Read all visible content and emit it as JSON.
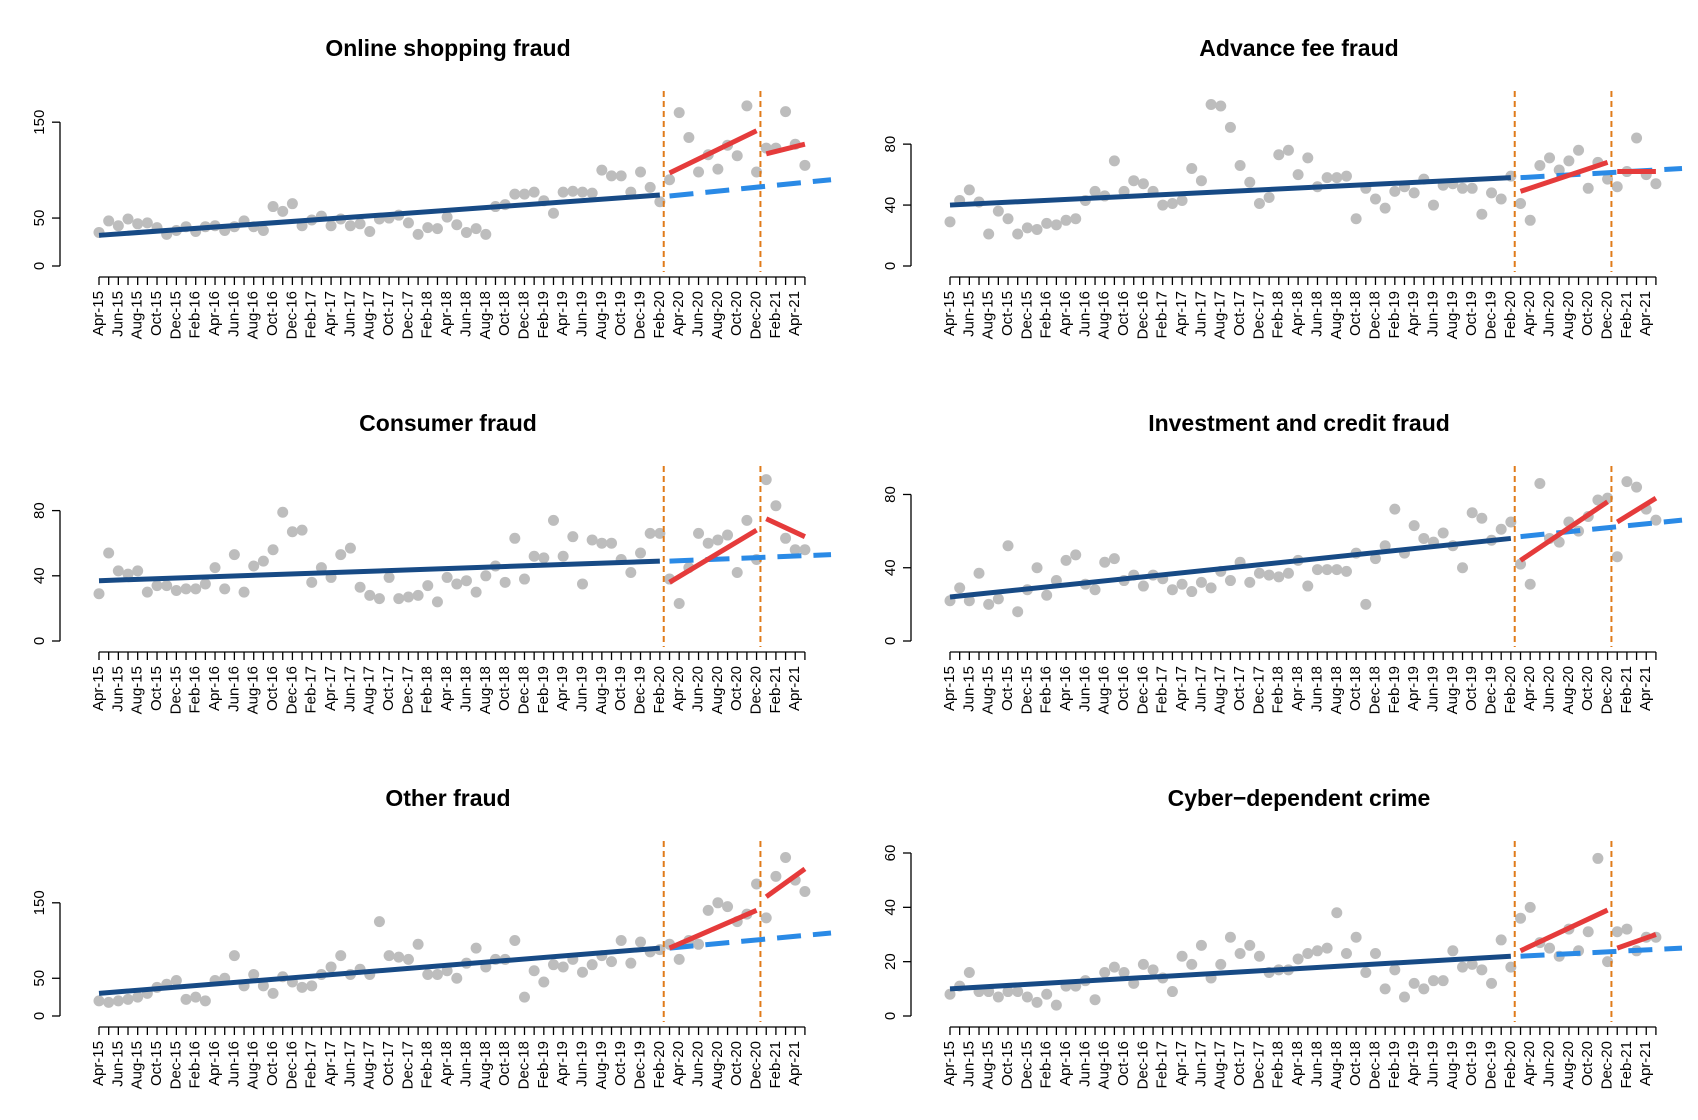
{
  "chart_data": [
    {
      "type": "scatter",
      "title": "Online shopping fraud",
      "point_color": "#bdbdbd",
      "categories": [
        "Apr-15",
        null,
        "Jun-15",
        null,
        "Aug-15",
        null,
        "Oct-15",
        null,
        "Dec-15",
        null,
        "Feb-16",
        null,
        "Apr-16",
        null,
        "Jun-16",
        null,
        "Aug-16",
        null,
        "Oct-16",
        null,
        "Dec-16",
        null,
        "Feb-17",
        null,
        "Apr-17",
        null,
        "Jun-17",
        null,
        "Aug-17",
        null,
        "Oct-17",
        null,
        "Dec-17",
        null,
        "Feb-18",
        null,
        "Apr-18",
        null,
        "Jun-18",
        null,
        "Aug-18",
        null,
        "Oct-18",
        null,
        "Dec-18",
        null,
        "Feb-19",
        null,
        "Apr-19",
        null,
        "Jun-19",
        null,
        "Aug-19",
        null,
        "Oct-19",
        null,
        "Dec-19",
        null,
        "Feb-20",
        null,
        "Apr-20",
        null,
        "Jun-20",
        null,
        "Aug-20",
        null,
        "Oct-20",
        null,
        "Dec-20",
        null,
        "Feb-21",
        null,
        "Apr-21",
        null
      ],
      "values": [
        35,
        47,
        42,
        49,
        44,
        45,
        40,
        33,
        37,
        41,
        36,
        41,
        42,
        37,
        41,
        47,
        41,
        37,
        62,
        57,
        65,
        42,
        48,
        52,
        42,
        49,
        42,
        44,
        36,
        49,
        50,
        53,
        45,
        33,
        40,
        39,
        51,
        43,
        35,
        39,
        33,
        62,
        64,
        75,
        75,
        77,
        68,
        55,
        77,
        78,
        77,
        76,
        100,
        94,
        94,
        77,
        98,
        82,
        67,
        90,
        160,
        134,
        98,
        116,
        101,
        126,
        115,
        167,
        98,
        123,
        123,
        161,
        127,
        105
      ],
      "lines": [
        {
          "color": "#174a85",
          "dashed": false,
          "x": [
            0,
            58
          ],
          "values": [
            32,
            74
          ]
        },
        {
          "color": "#2a8ae6",
          "dashed": true,
          "x": [
            59,
            75.7
          ],
          "values": [
            73,
            90
          ]
        },
        {
          "color": "#e53b3b",
          "dashed": false,
          "x": [
            59,
            68
          ],
          "values": [
            97,
            141
          ]
        },
        {
          "color": "#e53b3b",
          "dashed": false,
          "x": [
            69,
            73
          ],
          "values": [
            117,
            127
          ]
        }
      ],
      "vlines": [
        58.4,
        68.4
      ],
      "vline_color": "#e07b1a",
      "ylim": [
        0,
        170
      ],
      "yticks": [
        0,
        50,
        150
      ]
    },
    {
      "type": "scatter",
      "title": "Advance fee fraud",
      "point_color": "#bdbdbd",
      "categories": [
        "Apr-15",
        null,
        "Jun-15",
        null,
        "Aug-15",
        null,
        "Oct-15",
        null,
        "Dec-15",
        null,
        "Feb-16",
        null,
        "Apr-16",
        null,
        "Jun-16",
        null,
        "Aug-16",
        null,
        "Oct-16",
        null,
        "Dec-16",
        null,
        "Feb-17",
        null,
        "Apr-17",
        null,
        "Jun-17",
        null,
        "Aug-17",
        null,
        "Oct-17",
        null,
        "Dec-17",
        null,
        "Feb-18",
        null,
        "Apr-18",
        null,
        "Jun-18",
        null,
        "Aug-18",
        null,
        "Oct-18",
        null,
        "Dec-18",
        null,
        "Feb-19",
        null,
        "Apr-19",
        null,
        "Jun-19",
        null,
        "Aug-19",
        null,
        "Oct-19",
        null,
        "Dec-19",
        null,
        "Feb-20",
        null,
        "Apr-20",
        null,
        "Jun-20",
        null,
        "Aug-20",
        null,
        "Oct-20",
        null,
        "Dec-20",
        null,
        "Feb-21",
        null,
        "Apr-21",
        null
      ],
      "values": [
        29,
        43,
        50,
        42,
        21,
        36,
        31,
        21,
        25,
        24,
        28,
        27,
        30,
        31,
        43,
        49,
        46,
        69,
        49,
        56,
        54,
        49,
        40,
        41,
        43,
        64,
        56,
        106,
        105,
        91,
        66,
        55,
        41,
        45,
        73,
        76,
        60,
        71,
        52,
        58,
        58,
        59,
        31,
        51,
        44,
        38,
        49,
        52,
        48,
        57,
        40,
        53,
        54,
        51,
        51,
        34,
        48,
        44,
        59,
        41,
        30,
        66,
        71,
        63,
        69,
        76,
        51,
        68,
        57,
        52,
        62,
        84,
        60,
        54
      ],
      "lines": [
        {
          "color": "#174a85",
          "dashed": false,
          "x": [
            0,
            58
          ],
          "values": [
            40,
            58
          ]
        },
        {
          "color": "#2a8ae6",
          "dashed": true,
          "x": [
            59,
            75.7
          ],
          "values": [
            58,
            64
          ]
        },
        {
          "color": "#e53b3b",
          "dashed": false,
          "x": [
            59,
            68
          ],
          "values": [
            49,
            68
          ]
        },
        {
          "color": "#e53b3b",
          "dashed": false,
          "x": [
            69,
            73
          ],
          "values": [
            62,
            62
          ]
        }
      ],
      "vlines": [
        58.4,
        68.4
      ],
      "vline_color": "#e07b1a",
      "ylim": [
        0,
        107
      ],
      "yticks": [
        0,
        40,
        80
      ]
    },
    {
      "type": "scatter",
      "title": "Consumer fraud",
      "point_color": "#bdbdbd",
      "categories": [
        "Apr-15",
        null,
        "Jun-15",
        null,
        "Aug-15",
        null,
        "Oct-15",
        null,
        "Dec-15",
        null,
        "Feb-16",
        null,
        "Apr-16",
        null,
        "Jun-16",
        null,
        "Aug-16",
        null,
        "Oct-16",
        null,
        "Dec-16",
        null,
        "Feb-17",
        null,
        "Apr-17",
        null,
        "Jun-17",
        null,
        "Aug-17",
        null,
        "Oct-17",
        null,
        "Dec-17",
        null,
        "Feb-18",
        null,
        "Apr-18",
        null,
        "Jun-18",
        null,
        "Aug-18",
        null,
        "Oct-18",
        null,
        "Dec-18",
        null,
        "Feb-19",
        null,
        "Apr-19",
        null,
        "Jun-19",
        null,
        "Aug-19",
        null,
        "Oct-19",
        null,
        "Dec-19",
        null,
        "Feb-20",
        null,
        "Apr-20",
        null,
        "Jun-20",
        null,
        "Aug-20",
        null,
        "Oct-20",
        null,
        "Dec-20",
        null,
        "Feb-21",
        null,
        "Apr-21",
        null
      ],
      "values": [
        29,
        54,
        43,
        41,
        43,
        30,
        34,
        34,
        31,
        32,
        32,
        35,
        45,
        32,
        53,
        30,
        46,
        49,
        56,
        79,
        67,
        68,
        36,
        45,
        39,
        53,
        57,
        33,
        28,
        26,
        39,
        26,
        27,
        28,
        34,
        24,
        39,
        35,
        37,
        30,
        40,
        46,
        36,
        63,
        38,
        52,
        51,
        74,
        52,
        64,
        35,
        62,
        60,
        60,
        50,
        42,
        54,
        66,
        66,
        38,
        23,
        45,
        66,
        60,
        62,
        65,
        42,
        74,
        50,
        99,
        83,
        63,
        56,
        56
      ],
      "lines": [
        {
          "color": "#174a85",
          "dashed": false,
          "x": [
            0,
            58
          ],
          "values": [
            37,
            49
          ]
        },
        {
          "color": "#2a8ae6",
          "dashed": true,
          "x": [
            59,
            75.7
          ],
          "values": [
            49,
            53
          ]
        },
        {
          "color": "#e53b3b",
          "dashed": false,
          "x": [
            59,
            68
          ],
          "values": [
            36,
            68
          ]
        },
        {
          "color": "#e53b3b",
          "dashed": false,
          "x": [
            69,
            73
          ],
          "values": [
            75,
            64
          ]
        }
      ],
      "vlines": [
        58.4,
        68.4
      ],
      "vline_color": "#e07b1a",
      "ylim": [
        0,
        100
      ],
      "yticks": [
        0,
        40,
        80
      ]
    },
    {
      "type": "scatter",
      "title": "Investment and credit fraud",
      "point_color": "#bdbdbd",
      "categories": [
        "Apr-15",
        null,
        "Jun-15",
        null,
        "Aug-15",
        null,
        "Oct-15",
        null,
        "Dec-15",
        null,
        "Feb-16",
        null,
        "Apr-16",
        null,
        "Jun-16",
        null,
        "Aug-16",
        null,
        "Oct-16",
        null,
        "Dec-16",
        null,
        "Feb-17",
        null,
        "Apr-17",
        null,
        "Jun-17",
        null,
        "Aug-17",
        null,
        "Oct-17",
        null,
        "Dec-17",
        null,
        "Feb-18",
        null,
        "Apr-18",
        null,
        "Jun-18",
        null,
        "Aug-18",
        null,
        "Oct-18",
        null,
        "Dec-18",
        null,
        "Feb-19",
        null,
        "Apr-19",
        null,
        "Jun-19",
        null,
        "Aug-19",
        null,
        "Oct-19",
        null,
        "Dec-19",
        null,
        "Feb-20",
        null,
        "Apr-20",
        null,
        "Jun-20",
        null,
        "Aug-20",
        null,
        "Oct-20",
        null,
        "Dec-20",
        null,
        "Feb-21",
        null,
        "Apr-21",
        null
      ],
      "values": [
        22,
        29,
        22,
        37,
        20,
        23,
        52,
        16,
        28,
        40,
        25,
        33,
        44,
        47,
        31,
        28,
        43,
        45,
        33,
        36,
        30,
        36,
        34,
        28,
        31,
        27,
        32,
        29,
        38,
        33,
        43,
        32,
        37,
        36,
        35,
        37,
        44,
        30,
        39,
        39,
        39,
        38,
        48,
        20,
        45,
        52,
        72,
        48,
        63,
        56,
        54,
        59,
        52,
        40,
        70,
        67,
        55,
        61,
        65,
        42,
        31,
        86,
        56,
        54,
        65,
        60,
        68,
        77,
        78,
        46,
        87,
        84,
        72,
        66
      ],
      "lines": [
        {
          "color": "#174a85",
          "dashed": false,
          "x": [
            0,
            58
          ],
          "values": [
            24,
            56
          ]
        },
        {
          "color": "#2a8ae6",
          "dashed": true,
          "x": [
            59,
            75.7
          ],
          "values": [
            57,
            66
          ]
        },
        {
          "color": "#e53b3b",
          "dashed": false,
          "x": [
            59,
            68
          ],
          "values": [
            44,
            76
          ]
        },
        {
          "color": "#e53b3b",
          "dashed": false,
          "x": [
            69,
            73
          ],
          "values": [
            65,
            78
          ]
        }
      ],
      "vlines": [
        58.4,
        68.4
      ],
      "vline_color": "#e07b1a",
      "ylim": [
        0,
        89
      ],
      "yticks": [
        0,
        40,
        80
      ]
    },
    {
      "type": "scatter",
      "title": "Other fraud",
      "point_color": "#bdbdbd",
      "categories": [
        "Apr-15",
        null,
        "Jun-15",
        null,
        "Aug-15",
        null,
        "Oct-15",
        null,
        "Dec-15",
        null,
        "Feb-16",
        null,
        "Apr-16",
        null,
        "Jun-16",
        null,
        "Aug-16",
        null,
        "Oct-16",
        null,
        "Dec-16",
        null,
        "Feb-17",
        null,
        "Apr-17",
        null,
        "Jun-17",
        null,
        "Aug-17",
        null,
        "Oct-17",
        null,
        "Dec-17",
        null,
        "Feb-18",
        null,
        "Apr-18",
        null,
        "Jun-18",
        null,
        "Aug-18",
        null,
        "Oct-18",
        null,
        "Dec-18",
        null,
        "Feb-19",
        null,
        "Apr-19",
        null,
        "Jun-19",
        null,
        "Aug-19",
        null,
        "Oct-19",
        null,
        "Dec-19",
        null,
        "Feb-20",
        null,
        "Apr-20",
        null,
        "Jun-20",
        null,
        "Aug-20",
        null,
        "Oct-20",
        null,
        "Dec-20",
        null,
        "Feb-21",
        null,
        "Apr-21",
        null
      ],
      "values": [
        20,
        18,
        20,
        22,
        25,
        30,
        38,
        42,
        47,
        22,
        25,
        20,
        47,
        50,
        80,
        40,
        55,
        40,
        30,
        52,
        45,
        38,
        40,
        55,
        65,
        80,
        55,
        62,
        55,
        125,
        80,
        78,
        75,
        95,
        55,
        55,
        60,
        50,
        70,
        90,
        65,
        75,
        75,
        100,
        25,
        60,
        45,
        68,
        65,
        75,
        58,
        68,
        80,
        72,
        100,
        70,
        98,
        85,
        88,
        95,
        75,
        100,
        95,
        140,
        150,
        145,
        125,
        135,
        175,
        130,
        185,
        210,
        180,
        165
      ],
      "lines": [
        {
          "color": "#174a85",
          "dashed": false,
          "x": [
            0,
            58
          ],
          "values": [
            30,
            90
          ]
        },
        {
          "color": "#2a8ae6",
          "dashed": true,
          "x": [
            59,
            75.7
          ],
          "values": [
            90,
            110
          ]
        },
        {
          "color": "#e53b3b",
          "dashed": false,
          "x": [
            59,
            68
          ],
          "values": [
            90,
            140
          ]
        },
        {
          "color": "#e53b3b",
          "dashed": false,
          "x": [
            69,
            73
          ],
          "values": [
            158,
            195
          ]
        }
      ],
      "vlines": [
        58.4,
        68.4
      ],
      "vline_color": "#e07b1a",
      "ylim": [
        0,
        216
      ],
      "yticks": [
        0,
        50,
        150
      ]
    },
    {
      "type": "scatter",
      "title": "Cyber−dependent crime",
      "point_color": "#bdbdbd",
      "categories": [
        "Apr-15",
        null,
        "Jun-15",
        null,
        "Aug-15",
        null,
        "Oct-15",
        null,
        "Dec-15",
        null,
        "Feb-16",
        null,
        "Apr-16",
        null,
        "Jun-16",
        null,
        "Aug-16",
        null,
        "Oct-16",
        null,
        "Dec-16",
        null,
        "Feb-17",
        null,
        "Apr-17",
        null,
        "Jun-17",
        null,
        "Aug-17",
        null,
        "Oct-17",
        null,
        "Dec-17",
        null,
        "Feb-18",
        null,
        "Apr-18",
        null,
        "Jun-18",
        null,
        "Aug-18",
        null,
        "Oct-18",
        null,
        "Dec-18",
        null,
        "Feb-19",
        null,
        "Apr-19",
        null,
        "Jun-19",
        null,
        "Aug-19",
        null,
        "Oct-19",
        null,
        "Dec-19",
        null,
        "Feb-20",
        null,
        "Apr-20",
        null,
        "Jun-20",
        null,
        "Aug-20",
        null,
        "Oct-20",
        null,
        "Dec-20",
        null,
        "Feb-21",
        null,
        "Apr-21",
        null
      ],
      "values": [
        8,
        11,
        16,
        9,
        9,
        7,
        9,
        9,
        7,
        5,
        8,
        4,
        11,
        11,
        13,
        6,
        16,
        18,
        16,
        12,
        19,
        17,
        14,
        9,
        22,
        19,
        26,
        14,
        19,
        29,
        23,
        26,
        22,
        16,
        17,
        17,
        21,
        23,
        24,
        25,
        38,
        23,
        29,
        16,
        23,
        10,
        17,
        7,
        12,
        10,
        13,
        13,
        24,
        18,
        19,
        17,
        12,
        28,
        18,
        36,
        40,
        27,
        25,
        22,
        32,
        24,
        31,
        58,
        20,
        31,
        32,
        24,
        29,
        29
      ],
      "lines": [
        {
          "color": "#174a85",
          "dashed": false,
          "x": [
            0,
            58
          ],
          "values": [
            10,
            22
          ]
        },
        {
          "color": "#2a8ae6",
          "dashed": true,
          "x": [
            59,
            75.7
          ],
          "values": [
            22,
            25
          ]
        },
        {
          "color": "#e53b3b",
          "dashed": false,
          "x": [
            59,
            68
          ],
          "values": [
            24,
            39
          ]
        },
        {
          "color": "#e53b3b",
          "dashed": false,
          "x": [
            69,
            73
          ],
          "values": [
            25,
            30
          ]
        }
      ],
      "vlines": [
        58.4,
        68.4
      ],
      "vline_color": "#e07b1a",
      "ylim": [
        0,
        60
      ],
      "yticks": [
        0,
        20,
        40,
        60
      ]
    }
  ]
}
